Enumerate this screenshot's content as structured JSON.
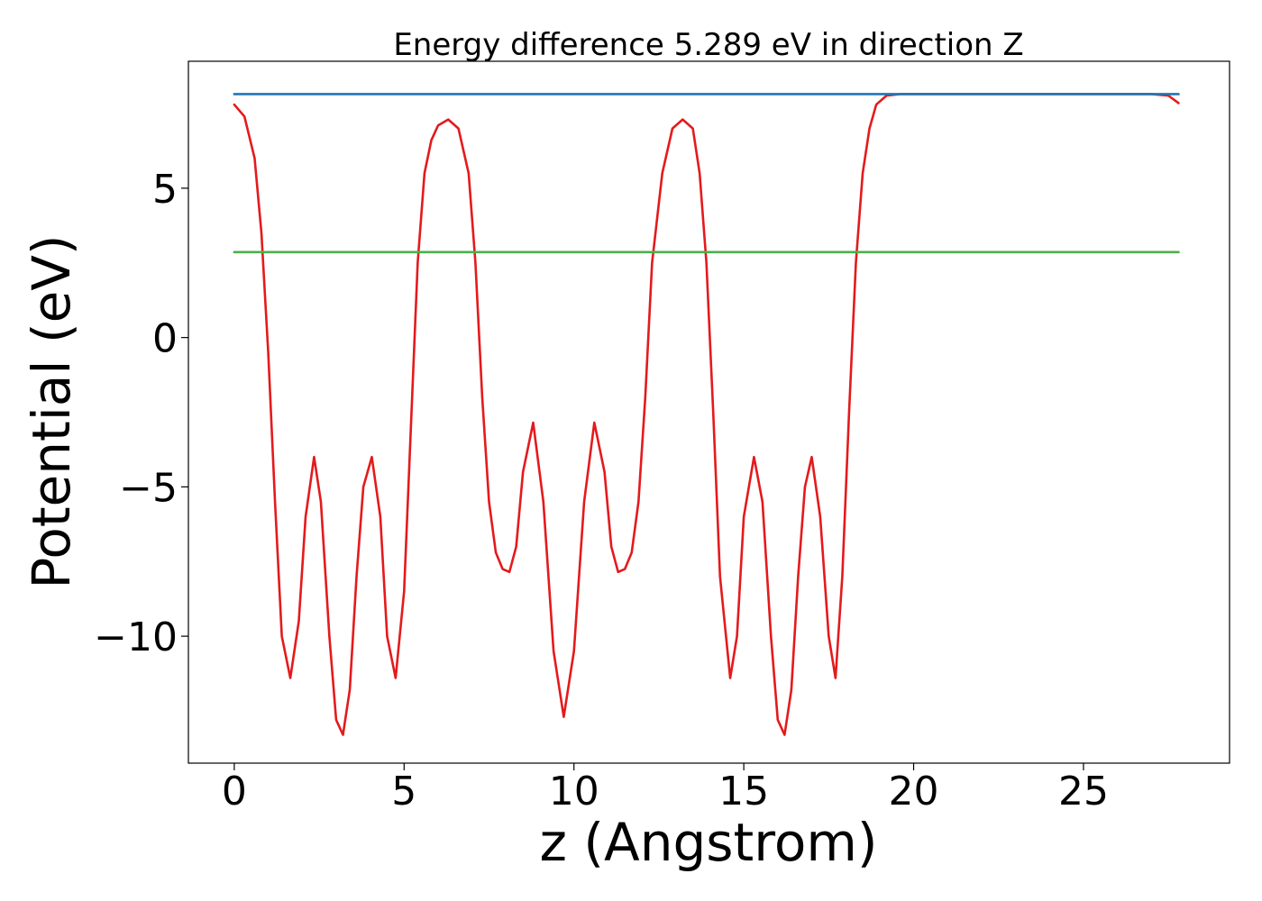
{
  "chart_data": {
    "type": "line",
    "title": "Energy difference 5.289 eV in direction Z",
    "xlabel": "z (Angstrom)",
    "ylabel": "Potential (eV)",
    "xlim": [
      -1.35,
      29.3
    ],
    "ylim": [
      -14.25,
      9.25
    ],
    "x_ticks": [
      0,
      5,
      10,
      15,
      20,
      25
    ],
    "x_tick_labels": [
      "0",
      "5",
      "10",
      "15",
      "20",
      "25"
    ],
    "y_ticks": [
      -10,
      -5,
      0,
      5
    ],
    "y_tick_labels": [
      "−10",
      "−5",
      "0",
      "5"
    ],
    "grid": false,
    "legend": "none",
    "series": [
      {
        "color": "#e41a1c",
        "style": "solid",
        "x": [
          0,
          0.3,
          0.6,
          0.8,
          1.0,
          1.2,
          1.4,
          1.65,
          1.9,
          2.1,
          2.35,
          2.55,
          2.8,
          3.0,
          3.2,
          3.4,
          3.6,
          3.8,
          4.05,
          4.3,
          4.5,
          4.75,
          5.0,
          5.2,
          5.4,
          5.6,
          5.8,
          6.0,
          6.3,
          6.6,
          6.9,
          7.1,
          7.3,
          7.5,
          7.7,
          7.9,
          8.1,
          8.3,
          8.5,
          8.8,
          9.1,
          9.4,
          9.7,
          10.0,
          10.3,
          10.6,
          10.9,
          11.1,
          11.3,
          11.5,
          11.7,
          11.9,
          12.1,
          12.3,
          12.6,
          12.9,
          13.2,
          13.5,
          13.7,
          13.9,
          14.1,
          14.3,
          14.6,
          14.8,
          15.0,
          15.3,
          15.55,
          15.8,
          16.0,
          16.2,
          16.4,
          16.6,
          16.8,
          17.0,
          17.25,
          17.5,
          17.7,
          17.9,
          18.1,
          18.3,
          18.5,
          18.7,
          18.9,
          19.2,
          19.6,
          20.0,
          21.0,
          22.0,
          24.0,
          26.0,
          27.0,
          27.5,
          27.8
        ],
        "y": [
          7.8,
          7.4,
          6.0,
          3.5,
          -0.5,
          -5.5,
          -10.0,
          -11.4,
          -9.5,
          -6.0,
          -4.0,
          -5.5,
          -10.0,
          -12.8,
          -13.3,
          -11.8,
          -8.0,
          -5.0,
          -4.0,
          -6.0,
          -10.0,
          -11.4,
          -8.5,
          -3.0,
          2.5,
          5.5,
          6.6,
          7.1,
          7.3,
          7.0,
          5.5,
          2.5,
          -2.0,
          -5.5,
          -7.2,
          -7.75,
          -7.85,
          -7.0,
          -4.5,
          -2.85,
          -5.5,
          -10.5,
          -12.7,
          -10.5,
          -5.5,
          -2.85,
          -4.5,
          -7.0,
          -7.85,
          -7.75,
          -7.2,
          -5.5,
          -2.0,
          2.5,
          5.5,
          7.0,
          7.3,
          7.0,
          5.5,
          2.5,
          -2.5,
          -8.0,
          -11.4,
          -10.0,
          -6.0,
          -4.0,
          -5.5,
          -10.0,
          -12.8,
          -13.3,
          -11.8,
          -8.0,
          -5.0,
          -4.0,
          -6.0,
          -10.0,
          -11.4,
          -8.0,
          -2.5,
          2.5,
          5.5,
          7.0,
          7.8,
          8.1,
          8.15,
          8.15,
          8.15,
          8.15,
          8.15,
          8.15,
          8.15,
          8.1,
          7.85
        ]
      },
      {
        "color": "#1f77b4",
        "style": "solid",
        "x": [
          0,
          27.8
        ],
        "y": [
          8.15,
          8.15
        ]
      },
      {
        "color": "#4daf4a",
        "style": "solid",
        "x": [
          0,
          27.8
        ],
        "y": [
          2.86,
          2.86
        ]
      }
    ]
  }
}
